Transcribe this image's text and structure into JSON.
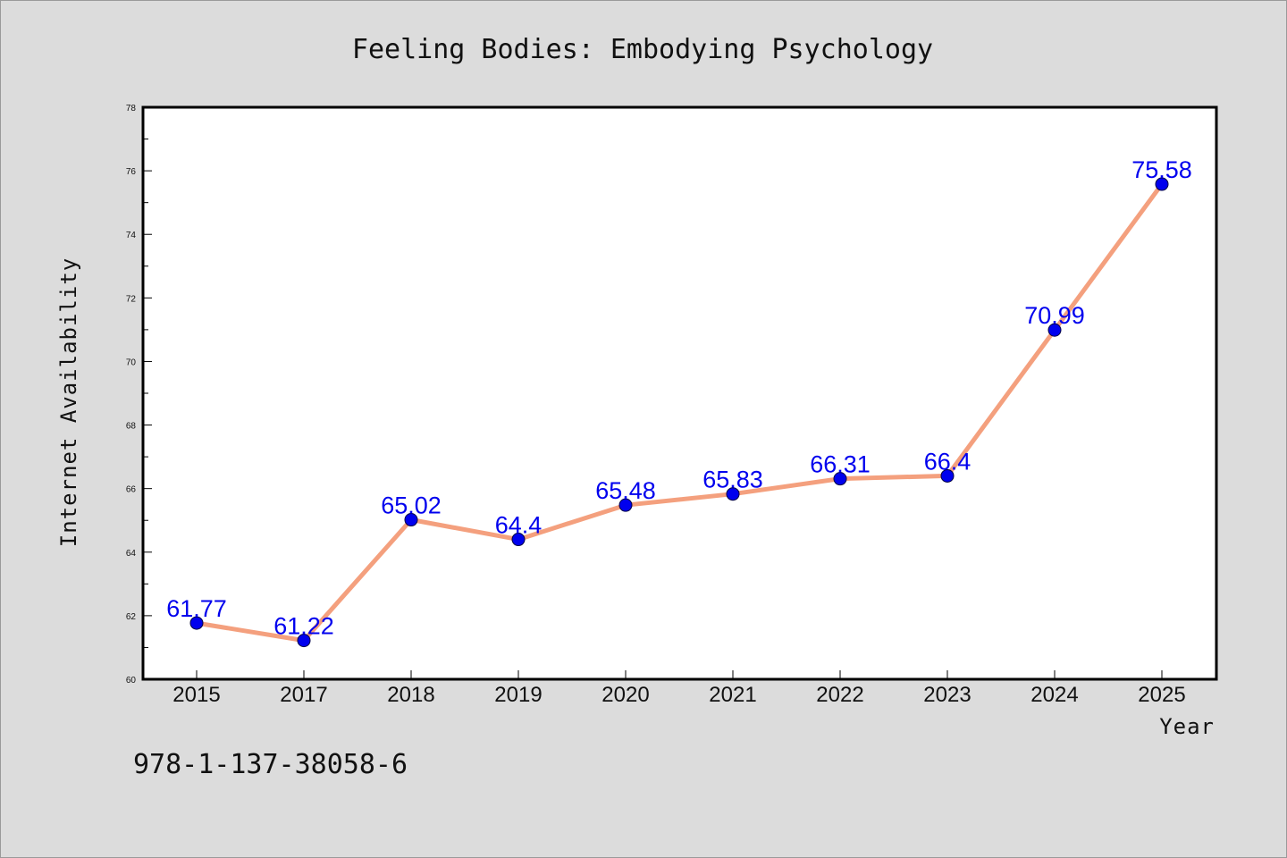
{
  "chart_data": {
    "type": "line",
    "title": "Feeling Bodies: Embodying Psychology",
    "xlabel": "Year",
    "ylabel": "Internet Availability",
    "categories": [
      "2015",
      "2017",
      "2018",
      "2019",
      "2020",
      "2021",
      "2022",
      "2023",
      "2024",
      "2025"
    ],
    "series": [
      {
        "values": [
          61.77,
          61.22,
          65.02,
          64.4,
          65.48,
          65.83,
          66.31,
          66.4,
          70.99,
          75.58
        ],
        "data_labels": [
          "61.77",
          "61.22",
          "65.02",
          "64.4",
          "65.48",
          "65.83",
          "66.31",
          "66.4",
          "70.99",
          "75.58"
        ]
      }
    ],
    "ylim": [
      60,
      78
    ],
    "yticks": [
      "60",
      "62",
      "64",
      "66",
      "68",
      "70",
      "72",
      "74",
      "76",
      "78"
    ],
    "grid": false,
    "legend": "none",
    "colors": {
      "line": "#f4a07e",
      "marker": "#0000ee",
      "data_label": "#0000ee",
      "background": "#dcdcdc",
      "plot_background": "#ffffff"
    }
  },
  "footer_text": "978-1-137-38058-6"
}
